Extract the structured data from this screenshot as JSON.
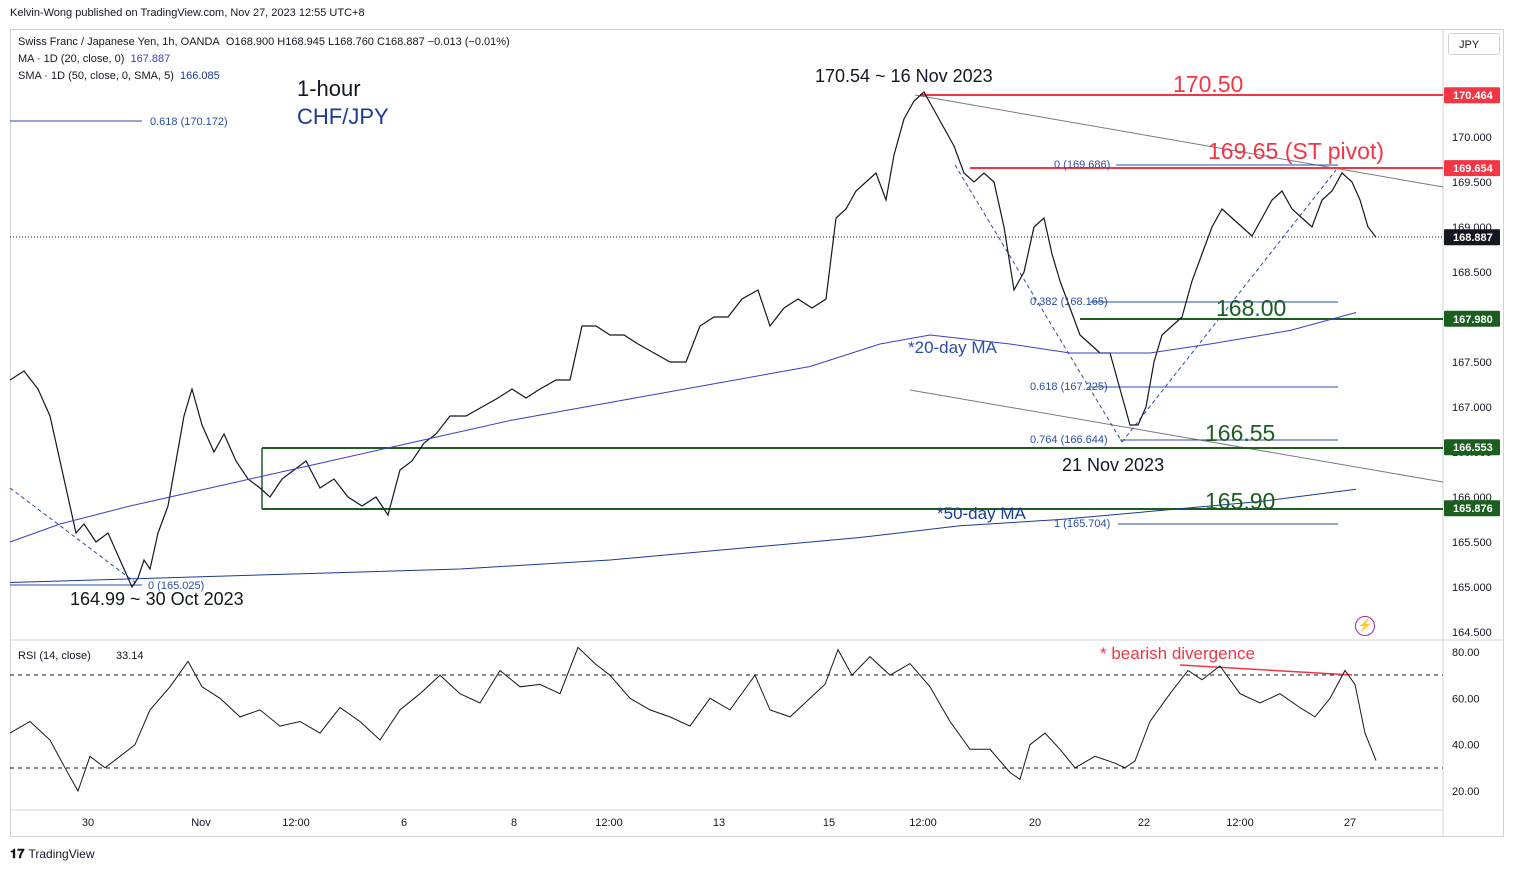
{
  "publisher": "Kelvin-Wong published on TradingView.com, Nov 27, 2023 12:55 UTC+8",
  "legend": {
    "symbol": "Swiss Franc / Japanese Yen, 1h, OANDA",
    "ohlc": "O168.900 H168.945 L168.760 C168.887 −0.013 (−0.01%)",
    "ma_label": "MA · 1D (20, close, 0)",
    "ma_value": "167.887",
    "sma_label": "SMA · 1D (50, close, 0, SMA, 5)",
    "sma_value": "166.085"
  },
  "currency_button": "JPY",
  "titles": {
    "timeframe": "1-hour",
    "pair": "CHF/JPY"
  },
  "colors": {
    "price": "#131722",
    "ma20": "#3a3fc4",
    "ma50": "#1c3a94",
    "resistance": "#f23645",
    "support": "#1b5e20",
    "fib": "#2a4da8",
    "rsi": "#131722",
    "divergence": "#f23645"
  },
  "annotations": {
    "high": "170.54 ~ 16 Nov 2023",
    "low_oct": "164.99 ~ 30 Oct 2023",
    "low_nov": "21 Nov 2023",
    "r1": "170.50",
    "pivot": "169.65 (ST pivot)",
    "s1": "168.00",
    "s2": "166.55",
    "s3": "165.90",
    "ma20": "*20-day MA",
    "ma50": "*50-day MA",
    "divergence": "* bearish divergence"
  },
  "fib_labels": {
    "top_left": "0.618 (170.172)",
    "zero_left": "0 (165.025)",
    "zero_right": "0 (169.686)",
    "f0382": "0.382 (168.165)",
    "f0618": "0.618 (167.225)",
    "f0764": "0.764 (166.644)",
    "f1": "1 (165.704)"
  },
  "price_tags": [
    {
      "label": "170.464",
      "value": 170.464,
      "color": "#f23645"
    },
    {
      "label": "169.654",
      "value": 169.654,
      "color": "#f23645"
    },
    {
      "label": "168.887",
      "value": 168.887,
      "color": "#131722"
    },
    {
      "label": "167.980",
      "value": 167.98,
      "color": "#1b5e20"
    },
    {
      "label": "166.553",
      "value": 166.553,
      "color": "#1b5e20"
    },
    {
      "label": "165.876",
      "value": 165.876,
      "color": "#1b5e20"
    }
  ],
  "rsi_label": "RSI (14, close)",
  "rsi_value": "33.14",
  "chart_data": [
    {
      "type": "line",
      "title": "Swiss Franc / Japanese Yen, 1h, OANDA",
      "x": [
        "30",
        "Nov",
        "12:00",
        "6",
        "8",
        "12:00",
        "13",
        "15",
        "12:00",
        "20",
        "22",
        "12:00",
        "27"
      ],
      "price_ticks": [
        164.5,
        165.0,
        165.5,
        166.0,
        166.5,
        167.0,
        167.5,
        168.0,
        168.5,
        169.0,
        169.5,
        170.0
      ],
      "ylim": [
        164.5,
        170.6
      ],
      "series": [
        {
          "name": "CHF/JPY",
          "points": [
            [
              0,
              167.3
            ],
            [
              14,
              167.4
            ],
            [
              28,
              167.2
            ],
            [
              40,
              166.9
            ],
            [
              50,
              166.4
            ],
            [
              58,
              166.0
            ],
            [
              66,
              165.6
            ],
            [
              74,
              165.7
            ],
            [
              86,
              165.5
            ],
            [
              98,
              165.6
            ],
            [
              110,
              165.3
            ],
            [
              122,
              165.0
            ],
            [
              128,
              165.1
            ],
            [
              134,
              165.3
            ],
            [
              140,
              165.2
            ],
            [
              148,
              165.6
            ],
            [
              158,
              165.9
            ],
            [
              166,
              166.4
            ],
            [
              174,
              166.9
            ],
            [
              182,
              167.2
            ],
            [
              192,
              166.8
            ],
            [
              204,
              166.5
            ],
            [
              214,
              166.7
            ],
            [
              226,
              166.4
            ],
            [
              238,
              166.2
            ],
            [
              250,
              166.1
            ],
            [
              260,
              166.0
            ],
            [
              272,
              166.2
            ],
            [
              284,
              166.3
            ],
            [
              296,
              166.4
            ],
            [
              310,
              166.1
            ],
            [
              324,
              166.2
            ],
            [
              338,
              166.0
            ],
            [
              352,
              165.9
            ],
            [
              366,
              166.0
            ],
            [
              378,
              165.8
            ],
            [
              390,
              166.3
            ],
            [
              402,
              166.4
            ],
            [
              414,
              166.6
            ],
            [
              426,
              166.7
            ],
            [
              440,
              166.9
            ],
            [
              456,
              166.9
            ],
            [
              472,
              167.0
            ],
            [
              488,
              167.1
            ],
            [
              502,
              167.2
            ],
            [
              516,
              167.1
            ],
            [
              530,
              167.2
            ],
            [
              546,
              167.3
            ],
            [
              560,
              167.3
            ],
            [
              572,
              167.9
            ],
            [
              586,
              167.9
            ],
            [
              600,
              167.8
            ],
            [
              614,
              167.8
            ],
            [
              628,
              167.7
            ],
            [
              644,
              167.6
            ],
            [
              660,
              167.5
            ],
            [
              676,
              167.5
            ],
            [
              690,
              167.9
            ],
            [
              704,
              168.0
            ],
            [
              718,
              168.0
            ],
            [
              732,
              168.2
            ],
            [
              748,
              168.3
            ],
            [
              760,
              167.9
            ],
            [
              774,
              168.1
            ],
            [
              788,
              168.2
            ],
            [
              802,
              168.1
            ],
            [
              816,
              168.2
            ],
            [
              826,
              169.1
            ],
            [
              836,
              169.2
            ],
            [
              846,
              169.4
            ],
            [
              856,
              169.5
            ],
            [
              866,
              169.6
            ],
            [
              876,
              169.3
            ],
            [
              884,
              169.8
            ],
            [
              894,
              170.2
            ],
            [
              904,
              170.4
            ],
            [
              914,
              170.5
            ],
            [
              924,
              170.3
            ],
            [
              934,
              170.1
            ],
            [
              944,
              169.9
            ],
            [
              954,
              169.6
            ],
            [
              964,
              169.5
            ],
            [
              974,
              169.6
            ],
            [
              984,
              169.5
            ],
            [
              994,
              169.0
            ],
            [
              1004,
              168.3
            ],
            [
              1014,
              168.5
            ],
            [
              1024,
              169.0
            ],
            [
              1034,
              169.1
            ],
            [
              1042,
              168.7
            ],
            [
              1050,
              168.4
            ],
            [
              1060,
              168.1
            ],
            [
              1070,
              167.8
            ],
            [
              1080,
              167.7
            ],
            [
              1090,
              167.6
            ],
            [
              1100,
              167.6
            ],
            [
              1110,
              167.2
            ],
            [
              1120,
              166.8
            ],
            [
              1128,
              166.8
            ],
            [
              1136,
              167.0
            ],
            [
              1144,
              167.5
            ],
            [
              1152,
              167.8
            ],
            [
              1162,
              167.9
            ],
            [
              1172,
              168.0
            ],
            [
              1182,
              168.4
            ],
            [
              1192,
              168.7
            ],
            [
              1202,
              169.0
            ],
            [
              1212,
              169.2
            ],
            [
              1222,
              169.1
            ],
            [
              1232,
              169.0
            ],
            [
              1242,
              168.9
            ],
            [
              1252,
              169.1
            ],
            [
              1262,
              169.3
            ],
            [
              1272,
              169.4
            ],
            [
              1282,
              169.2
            ],
            [
              1292,
              169.1
            ],
            [
              1302,
              169.0
            ],
            [
              1312,
              169.3
            ],
            [
              1322,
              169.4
            ],
            [
              1332,
              169.6
            ],
            [
              1342,
              169.5
            ],
            [
              1350,
              169.3
            ],
            [
              1358,
              169.0
            ],
            [
              1366,
              168.887
            ]
          ]
        },
        {
          "name": "MA · 1D (20, close, 0)",
          "points": [
            [
              0,
              165.5
            ],
            [
              50,
              165.7
            ],
            [
              120,
              165.9
            ],
            [
              200,
              166.1
            ],
            [
              300,
              166.35
            ],
            [
              400,
              166.6
            ],
            [
              500,
              166.85
            ],
            [
              600,
              167.05
            ],
            [
              700,
              167.25
            ],
            [
              800,
              167.45
            ],
            [
              870,
              167.7
            ],
            [
              920,
              167.8
            ],
            [
              1000,
              167.7
            ],
            [
              1060,
              167.6
            ],
            [
              1140,
              167.6
            ],
            [
              1200,
              167.7
            ],
            [
              1280,
              167.85
            ],
            [
              1346,
              168.05
            ]
          ]
        },
        {
          "name": "SMA · 1D (50, close, 0, SMA, 5)",
          "points": [
            [
              0,
              165.05
            ],
            [
              150,
              165.1
            ],
            [
              300,
              165.15
            ],
            [
              450,
              165.2
            ],
            [
              600,
              165.3
            ],
            [
              750,
              165.45
            ],
            [
              850,
              165.55
            ],
            [
              950,
              165.68
            ],
            [
              1050,
              165.75
            ],
            [
              1150,
              165.85
            ],
            [
              1250,
              165.95
            ],
            [
              1346,
              166.085
            ]
          ]
        }
      ]
    },
    {
      "type": "line",
      "title": "RSI (14, close)",
      "ylim": [
        15,
        85
      ],
      "y_ticks": [
        20,
        40,
        60,
        80
      ],
      "levels": [
        70,
        30
      ],
      "series": [
        {
          "name": "RSI (14, close)",
          "points": [
            [
              0,
              45
            ],
            [
              20,
              50
            ],
            [
              40,
              42
            ],
            [
              55,
              30
            ],
            [
              68,
              20
            ],
            [
              80,
              35
            ],
            [
              95,
              30
            ],
            [
              110,
              35
            ],
            [
              125,
              40
            ],
            [
              140,
              55
            ],
            [
              160,
              65
            ],
            [
              178,
              76
            ],
            [
              192,
              65
            ],
            [
              210,
              60
            ],
            [
              230,
              52
            ],
            [
              250,
              55
            ],
            [
              270,
              48
            ],
            [
              290,
              50
            ],
            [
              310,
              45
            ],
            [
              330,
              56
            ],
            [
              350,
              50
            ],
            [
              370,
              42
            ],
            [
              390,
              55
            ],
            [
              410,
              62
            ],
            [
              430,
              70
            ],
            [
              450,
              62
            ],
            [
              470,
              58
            ],
            [
              490,
              72
            ],
            [
              510,
              65
            ],
            [
              530,
              66
            ],
            [
              550,
              62
            ],
            [
              568,
              82
            ],
            [
              585,
              75
            ],
            [
              600,
              70
            ],
            [
              620,
              60
            ],
            [
              640,
              55
            ],
            [
              660,
              52
            ],
            [
              680,
              48
            ],
            [
              700,
              60
            ],
            [
              720,
              55
            ],
            [
              745,
              70
            ],
            [
              760,
              55
            ],
            [
              780,
              52
            ],
            [
              800,
              60
            ],
            [
              815,
              66
            ],
            [
              828,
              81
            ],
            [
              842,
              70
            ],
            [
              860,
              78
            ],
            [
              880,
              70
            ],
            [
              900,
              75
            ],
            [
              920,
              65
            ],
            [
              940,
              50
            ],
            [
              960,
              38
            ],
            [
              980,
              38
            ],
            [
              1000,
              28
            ],
            [
              1010,
              25
            ],
            [
              1020,
              40
            ],
            [
              1035,
              45
            ],
            [
              1050,
              38
            ],
            [
              1065,
              30
            ],
            [
              1085,
              35
            ],
            [
              1105,
              32
            ],
            [
              1115,
              30
            ],
            [
              1125,
              33
            ],
            [
              1140,
              50
            ],
            [
              1160,
              62
            ],
            [
              1178,
              72
            ],
            [
              1192,
              68
            ],
            [
              1210,
              74
            ],
            [
              1230,
              62
            ],
            [
              1250,
              58
            ],
            [
              1270,
              62
            ],
            [
              1290,
              56
            ],
            [
              1305,
              52
            ],
            [
              1320,
              60
            ],
            [
              1335,
              72
            ],
            [
              1345,
              66
            ],
            [
              1355,
              45
            ],
            [
              1366,
              33.14
            ]
          ]
        }
      ]
    }
  ]
}
